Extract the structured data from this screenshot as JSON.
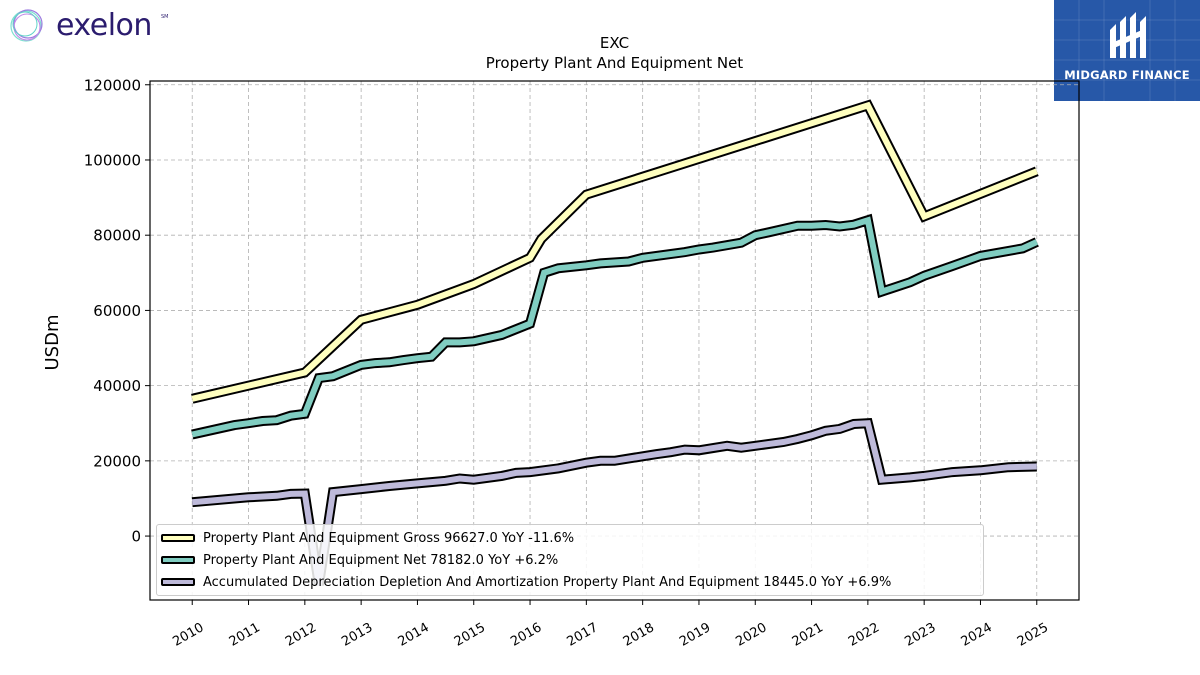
{
  "brand": {
    "name": "exelon",
    "mark": "SM"
  },
  "badge": {
    "text": "MIDGARD FINANCE",
    "color": "#2758a8"
  },
  "chart_data": {
    "type": "line",
    "title": "EXC",
    "subtitle": "Property Plant And Equipment Net",
    "ylabel": "USDm",
    "xlabel": "",
    "ylim": [
      -17000,
      121000
    ],
    "xlim": [
      2009.25,
      2025.75
    ],
    "yticks": [
      0,
      20000,
      40000,
      60000,
      80000,
      100000,
      120000
    ],
    "xticks": [
      "2010",
      "2011",
      "2012",
      "2013",
      "2014",
      "2015",
      "2016",
      "2017",
      "2018",
      "2019",
      "2020",
      "2021",
      "2022",
      "2023",
      "2024",
      "2025"
    ],
    "grid": true,
    "legend_position": "lower-left",
    "series": [
      {
        "name": "Property Plant And Equipment Gross",
        "legend_label": "Property Plant And Equipment Gross  96627.0 YoY -11.6%",
        "color": "#ffffbf",
        "points": [
          [
            2010.0,
            36500
          ],
          [
            2012.0,
            43500
          ],
          [
            2013.0,
            57500
          ],
          [
            2014.0,
            61500
          ],
          [
            2015.0,
            67000
          ],
          [
            2016.0,
            74000
          ],
          [
            2016.2,
            79000
          ],
          [
            2017.0,
            90800
          ],
          [
            2022.0,
            114500
          ],
          [
            2023.0,
            85000
          ],
          [
            2025.0,
            97000
          ]
        ]
      },
      {
        "name": "Property Plant And Equipment Net",
        "legend_label": "Property Plant And Equipment Net  78182.0 YoY +6.2%",
        "color": "#80cdc1",
        "points": [
          [
            2010.0,
            27000
          ],
          [
            2010.75,
            29500
          ],
          [
            2011.0,
            30000
          ],
          [
            2011.25,
            30600
          ],
          [
            2011.5,
            30800
          ],
          [
            2011.75,
            32000
          ],
          [
            2012.0,
            32500
          ],
          [
            2012.25,
            42000
          ],
          [
            2012.5,
            42500
          ],
          [
            2013.0,
            45500
          ],
          [
            2013.25,
            46000
          ],
          [
            2013.5,
            46200
          ],
          [
            2013.75,
            46800
          ],
          [
            2014.0,
            47300
          ],
          [
            2014.25,
            47700
          ],
          [
            2014.5,
            51500
          ],
          [
            2014.75,
            51500
          ],
          [
            2015.0,
            51800
          ],
          [
            2015.5,
            53500
          ],
          [
            2016.0,
            56500
          ],
          [
            2016.25,
            70000
          ],
          [
            2016.5,
            71200
          ],
          [
            2017.0,
            72000
          ],
          [
            2017.25,
            72500
          ],
          [
            2017.75,
            73000
          ],
          [
            2018.0,
            74000
          ],
          [
            2018.75,
            75500
          ],
          [
            2019.0,
            76200
          ],
          [
            2019.25,
            76700
          ],
          [
            2019.75,
            78000
          ],
          [
            2020.0,
            80000
          ],
          [
            2020.25,
            80800
          ],
          [
            2020.75,
            82500
          ],
          [
            2021.0,
            82500
          ],
          [
            2021.25,
            82700
          ],
          [
            2021.5,
            82300
          ],
          [
            2021.75,
            82800
          ],
          [
            2022.0,
            84000
          ],
          [
            2022.25,
            65000
          ],
          [
            2022.75,
            67500
          ],
          [
            2023.0,
            69200
          ],
          [
            2023.5,
            71800
          ],
          [
            2024.0,
            74500
          ],
          [
            2024.75,
            76500
          ],
          [
            2025.0,
            78200
          ]
        ]
      },
      {
        "name": "Accumulated Depreciation Depletion And Amortization Property Plant And Equipment",
        "legend_label": "Accumulated Depreciation Depletion And Amortization Property Plant And Equipment  18445.0 YoY +6.9%",
        "color": "#bebada",
        "points": [
          [
            2010.0,
            9000
          ],
          [
            2011.0,
            10300
          ],
          [
            2011.5,
            10700
          ],
          [
            2011.75,
            11200
          ],
          [
            2012.0,
            11300
          ],
          [
            2012.25,
            -13000
          ],
          [
            2012.5,
            11700
          ],
          [
            2013.0,
            12500
          ],
          [
            2013.5,
            13300
          ],
          [
            2014.0,
            14000
          ],
          [
            2014.5,
            14700
          ],
          [
            2014.75,
            15300
          ],
          [
            2015.0,
            15000
          ],
          [
            2015.5,
            16000
          ],
          [
            2015.75,
            16800
          ],
          [
            2016.0,
            17000
          ],
          [
            2016.5,
            18000
          ],
          [
            2017.0,
            19500
          ],
          [
            2017.25,
            20000
          ],
          [
            2017.5,
            20000
          ],
          [
            2018.0,
            21200
          ],
          [
            2018.25,
            21800
          ],
          [
            2018.5,
            22300
          ],
          [
            2018.75,
            23000
          ],
          [
            2019.0,
            22800
          ],
          [
            2019.5,
            24000
          ],
          [
            2019.75,
            23500
          ],
          [
            2020.0,
            24000
          ],
          [
            2020.5,
            25000
          ],
          [
            2020.75,
            25800
          ],
          [
            2021.0,
            26800
          ],
          [
            2021.25,
            28000
          ],
          [
            2021.5,
            28500
          ],
          [
            2021.75,
            29800
          ],
          [
            2022.0,
            30000
          ],
          [
            2022.25,
            15000
          ],
          [
            2022.75,
            15600
          ],
          [
            2023.0,
            16000
          ],
          [
            2023.5,
            17000
          ],
          [
            2024.0,
            17500
          ],
          [
            2024.5,
            18300
          ],
          [
            2025.0,
            18500
          ]
        ]
      }
    ]
  }
}
